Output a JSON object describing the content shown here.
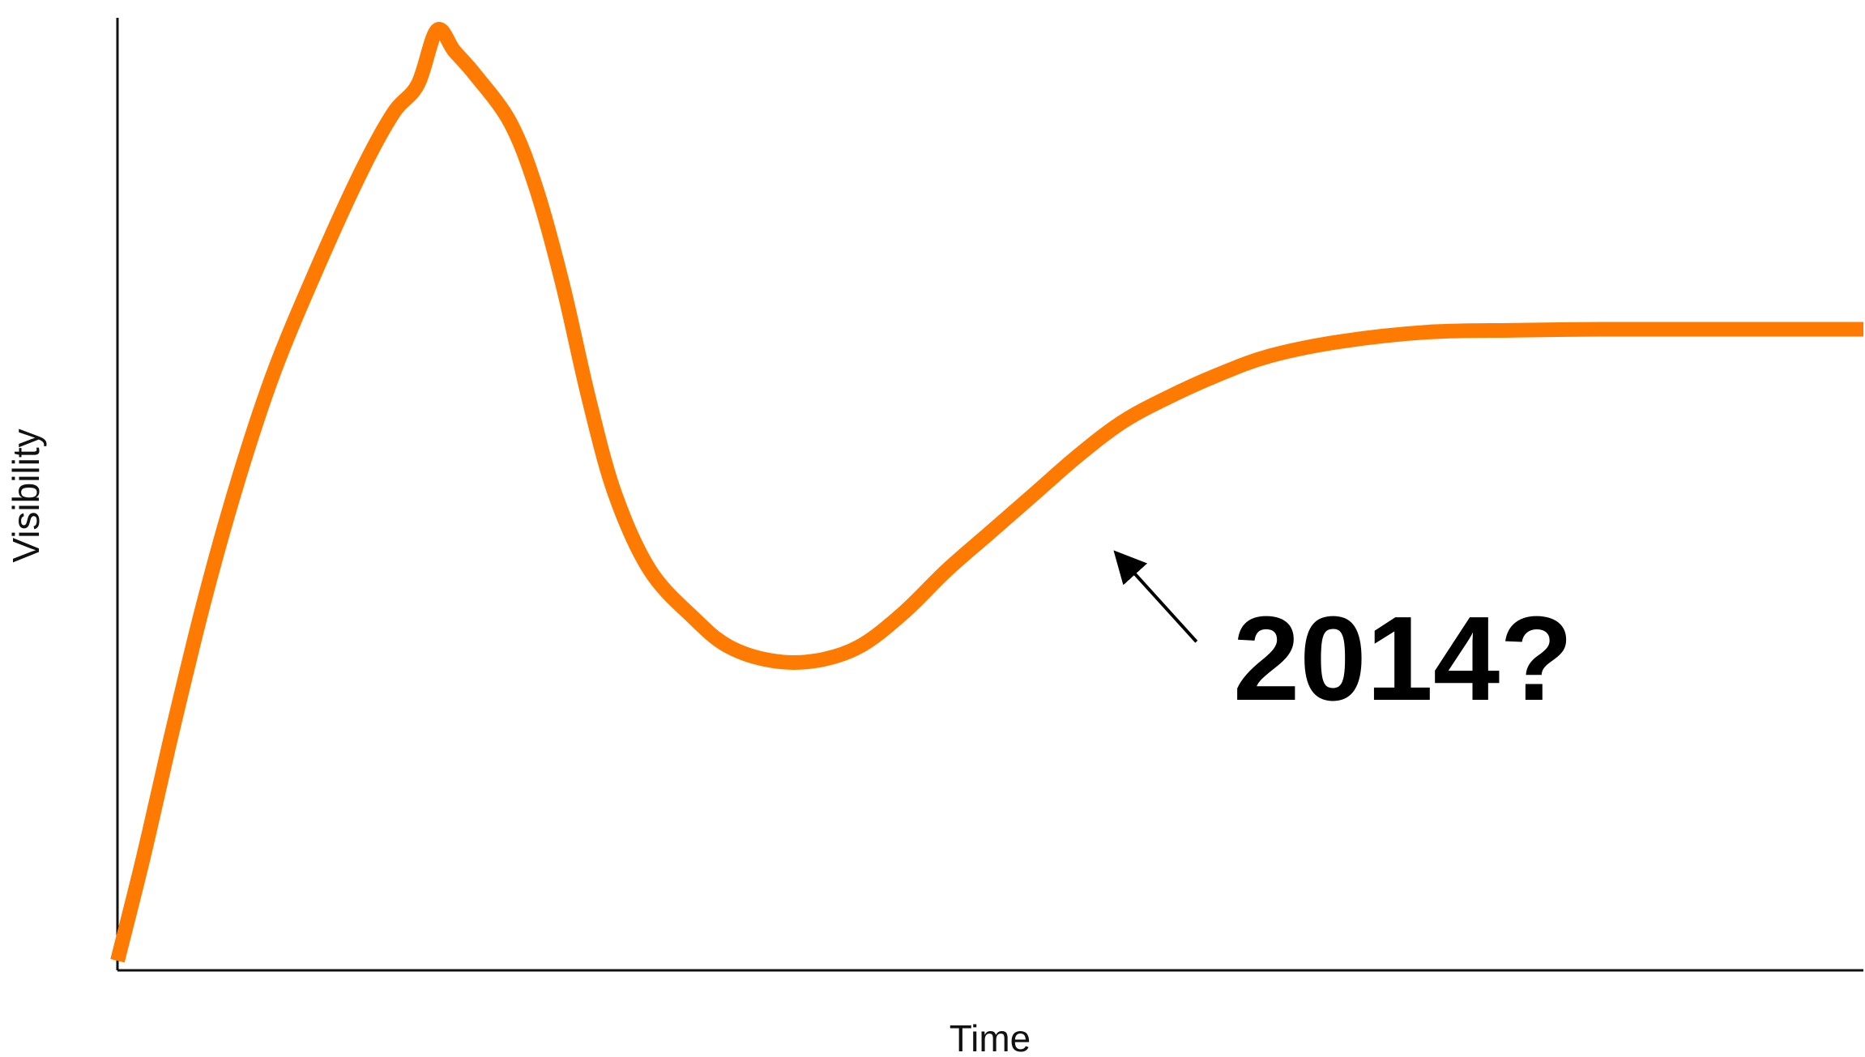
{
  "chart_data": {
    "type": "line",
    "title": "",
    "xlabel": "Time",
    "ylabel": "Visibility",
    "xlim": [
      0,
      100
    ],
    "ylim": [
      0,
      100
    ],
    "grid": false,
    "legend": "none",
    "x_ticks": [],
    "y_ticks": [],
    "series": [
      {
        "color": "#ff7a00",
        "points": [
          [
            0.0,
            1.0
          ],
          [
            1.5,
            12.0
          ],
          [
            3.0,
            24.0
          ],
          [
            5.0,
            39.0
          ],
          [
            7.0,
            52.0
          ],
          [
            9.0,
            63.0
          ],
          [
            11.5,
            74.0
          ],
          [
            14.0,
            84.0
          ],
          [
            15.8,
            90.0
          ],
          [
            17.2,
            93.0
          ],
          [
            18.3,
            98.7
          ],
          [
            19.3,
            96.5
          ],
          [
            20.5,
            94.0
          ],
          [
            22.5,
            89.0
          ],
          [
            24.0,
            82.0
          ],
          [
            25.5,
            72.0
          ],
          [
            27.0,
            60.0
          ],
          [
            28.5,
            50.0
          ],
          [
            30.5,
            42.0
          ],
          [
            33.0,
            37.0
          ],
          [
            35.0,
            34.0
          ],
          [
            37.5,
            32.5
          ],
          [
            40.0,
            32.5
          ],
          [
            42.5,
            34.0
          ],
          [
            45.0,
            37.5
          ],
          [
            47.5,
            42.0
          ],
          [
            50.0,
            46.0
          ],
          [
            52.5,
            50.0
          ],
          [
            55.0,
            54.0
          ],
          [
            57.5,
            57.5
          ],
          [
            60.0,
            60.0
          ],
          [
            63.0,
            62.5
          ],
          [
            66.0,
            64.5
          ],
          [
            70.0,
            66.0
          ],
          [
            75.0,
            67.0
          ],
          [
            80.0,
            67.2
          ],
          [
            85.0,
            67.3
          ],
          [
            90.0,
            67.3
          ],
          [
            95.0,
            67.3
          ],
          [
            100.0,
            67.3
          ]
        ]
      }
    ],
    "annotations": [
      {
        "text": "2014?",
        "arrow_from": [
          61.8,
          34.5
        ],
        "arrow_to": [
          57.3,
          43.6
        ]
      }
    ]
  }
}
